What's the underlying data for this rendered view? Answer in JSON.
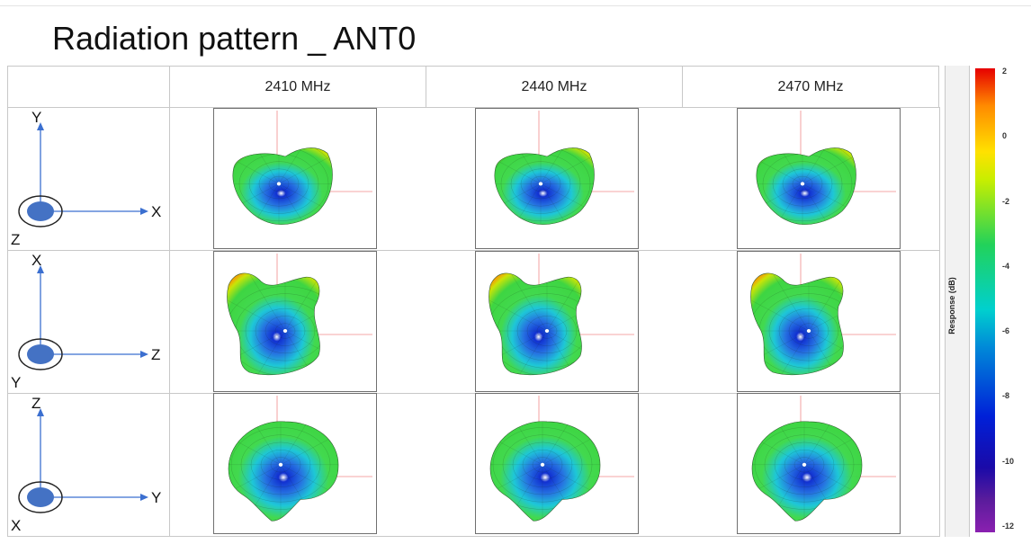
{
  "title": "Radiation pattern _ ANT0",
  "columns": [
    "2410 MHz",
    "2440 MHz",
    "2470 MHz"
  ],
  "rows": [
    {
      "up": "Y",
      "right": "X",
      "out": "Z"
    },
    {
      "up": "X",
      "right": "Z",
      "out": "Y"
    },
    {
      "up": "Z",
      "right": "Y",
      "out": "X"
    }
  ],
  "colorbar": {
    "label": "Response (dB)",
    "ticks": [
      "2",
      "0",
      "-2",
      "-4",
      "-6",
      "-8",
      "-10",
      "-12"
    ],
    "range": [
      -12,
      2
    ],
    "colors": [
      "#e60000",
      "#ffe100",
      "#22d25a",
      "#00d0ce",
      "#0020d8",
      "#8a20b0"
    ]
  },
  "colors": {
    "axis_arrow": "#3b6fd0",
    "axis_circle": "#4472c4",
    "pattern_null": "#0a2ad0",
    "pattern_main": "#3cd84a"
  }
}
